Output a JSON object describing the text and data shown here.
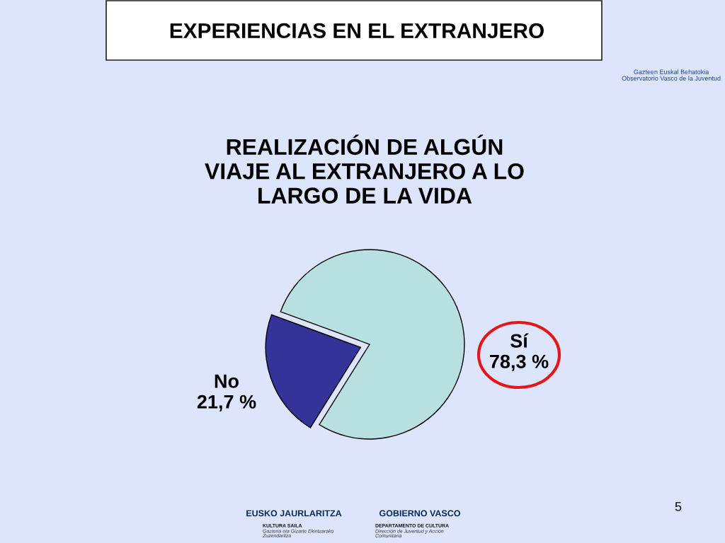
{
  "chart_data": {
    "type": "pie",
    "title": "EXPERIENCIAS EN EL EXTRANJERO",
    "subtitle": "REALIZACIÓN DE ALGÚN\nVIAJE AL EXTRANJERO A LO\nLARGO DE LA VIDA",
    "categories": [
      "Sí",
      "No"
    ],
    "values": [
      78.3,
      21.7
    ],
    "colors": [
      "#b9e0e1",
      "#333399"
    ],
    "value_labels": [
      "78,3 %",
      "21,7 %"
    ],
    "annotations": [
      "Gazteen Euskal Behatokia\nObservatorio Vasco de la Juventud",
      "EUSKO JAURLARITZA",
      "GOBIERNO VASCO",
      "KULTURA SAILA",
      "Gazteria eta Gizarte Ekintzarako\nZuzendaritza",
      "DEPARTAMENTO DE CULTURA",
      "Dirección de Juventud y Acción\nComunitaria",
      "5"
    ]
  }
}
